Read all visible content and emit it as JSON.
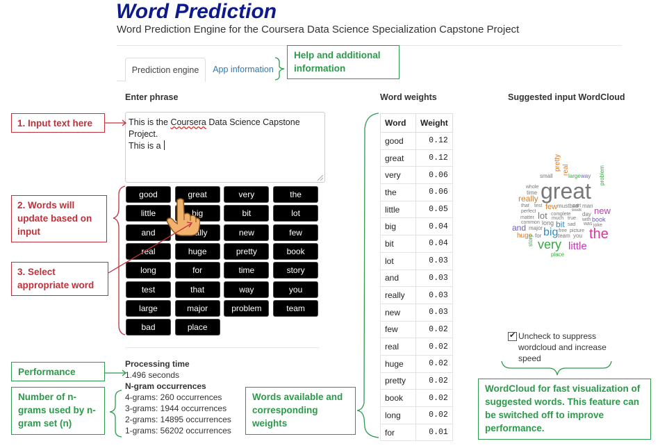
{
  "header": {
    "title": "Word Prediction",
    "subtitle": "Word Prediction Engine for the Coursera Data Science Specialization Capstone Project"
  },
  "tabs": [
    {
      "label": "Prediction engine",
      "active": true
    },
    {
      "label": "App information",
      "active": false
    }
  ],
  "input": {
    "heading": "Enter phrase",
    "value_part1": "This is the ",
    "value_misspelled": "Coursera",
    "value_part2": " Data Science Capstone Project.\nThis is a "
  },
  "word_buttons": [
    "good",
    "great",
    "very",
    "the",
    "little",
    "big",
    "bit",
    "lot",
    "and",
    "really",
    "new",
    "few",
    "real",
    "huge",
    "pretty",
    "book",
    "long",
    "for",
    "time",
    "story",
    "test",
    "that",
    "way",
    "you",
    "large",
    "major",
    "problem",
    "team",
    "bad",
    "place"
  ],
  "stats": {
    "processing_heading": "Processing time",
    "processing_value": "1.496 seconds",
    "ngram_heading": "N-gram occurrences",
    "ngrams": [
      "4-grams: 260 occurrences",
      "3-grams: 1944 occurrences",
      "2-grams: 14895 occurrences",
      "1-grams: 56202 occurrences"
    ]
  },
  "weights": {
    "heading": "Word weights",
    "col_word": "Word",
    "col_weight": "Weight",
    "rows": [
      [
        "good",
        "0.12"
      ],
      [
        "great",
        "0.12"
      ],
      [
        "very",
        "0.06"
      ],
      [
        "the",
        "0.06"
      ],
      [
        "little",
        "0.05"
      ],
      [
        "big",
        "0.04"
      ],
      [
        "bit",
        "0.04"
      ],
      [
        "lot",
        "0.03"
      ],
      [
        "and",
        "0.03"
      ],
      [
        "really",
        "0.03"
      ],
      [
        "new",
        "0.03"
      ],
      [
        "few",
        "0.02"
      ],
      [
        "real",
        "0.02"
      ],
      [
        "huge",
        "0.02"
      ],
      [
        "pretty",
        "0.02"
      ],
      [
        "book",
        "0.02"
      ],
      [
        "long",
        "0.02"
      ],
      [
        "for",
        "0.01"
      ]
    ]
  },
  "wordcloud": {
    "heading": "Suggested input WordCloud",
    "words": [
      {
        "text": "great",
        "color": "#777777"
      },
      {
        "text": "the",
        "color": "#d6339b"
      },
      {
        "text": "very",
        "color": "#3aa544"
      },
      {
        "text": "little",
        "color": "#c23bb4"
      },
      {
        "text": "big",
        "color": "#2b8cbf"
      },
      {
        "text": "really",
        "color": "#e07b22"
      },
      {
        "text": "new",
        "color": "#c23bb4"
      },
      {
        "text": "and",
        "color": "#6a5db8"
      },
      {
        "text": "lot",
        "color": "#777777"
      },
      {
        "text": "bit",
        "color": "#2b8cbf"
      },
      {
        "text": "few",
        "color": "#e07b22"
      },
      {
        "text": "huge",
        "color": "#e07b22"
      },
      {
        "text": "pretty",
        "color": "#e07b22"
      },
      {
        "text": "real",
        "color": "#e07b22"
      },
      {
        "text": "book",
        "color": "#6a5db8"
      },
      {
        "text": "long",
        "color": "#777777"
      },
      {
        "text": "story",
        "color": "#3aa544"
      },
      {
        "text": "small",
        "color": "#777777"
      },
      {
        "text": "large",
        "color": "#3aa544"
      },
      {
        "text": "way",
        "color": "#6a5db8"
      },
      {
        "text": "whole",
        "color": "#777777"
      },
      {
        "text": "time",
        "color": "#777777"
      },
      {
        "text": "problem",
        "color": "#3aa544"
      },
      {
        "text": "mustbad",
        "color": "#777777"
      },
      {
        "text": "man",
        "color": "#777777"
      },
      {
        "text": "day",
        "color": "#777777"
      },
      {
        "text": "that",
        "color": "#777777"
      },
      {
        "text": "test",
        "color": "#777777"
      },
      {
        "text": "perfect",
        "color": "#777777"
      },
      {
        "text": "matter",
        "color": "#777777"
      },
      {
        "text": "common",
        "color": "#777777"
      },
      {
        "text": "major",
        "color": "#777777"
      },
      {
        "text": "for",
        "color": "#777777"
      },
      {
        "text": "team",
        "color": "#777777"
      },
      {
        "text": "you",
        "color": "#777777"
      },
      {
        "text": "place",
        "color": "#3aa544"
      },
      {
        "text": "joke",
        "color": "#777777"
      },
      {
        "text": "was",
        "color": "#777777"
      },
      {
        "text": "with",
        "color": "#777777"
      },
      {
        "text": "much",
        "color": "#777777"
      },
      {
        "text": "true",
        "color": "#777777"
      },
      {
        "text": "sad",
        "color": "#777777"
      },
      {
        "text": "free",
        "color": "#777777"
      },
      {
        "text": "picture",
        "color": "#777777"
      },
      {
        "text": "complete",
        "color": "#777777"
      },
      {
        "text": "week",
        "color": "#777777"
      },
      {
        "text": "part",
        "color": "#777777"
      }
    ]
  },
  "checkbox": {
    "checked": true,
    "label": "Uncheck to suppress wordcloud and increase speed"
  },
  "callouts": {
    "help": "Help and additional information",
    "input": "1. Input text here",
    "words_update": "2. Words will update based on input",
    "select": "3. Select appropriate word",
    "performance": "Performance",
    "ngrams": "Number of n-grams used by n-gram set (n)",
    "words_available": "Words available and corresponding weights",
    "wordcloud": "WordCloud for fast visualization of suggested words. This feature can be switched off to improve performance."
  },
  "colors": {
    "title": "#0d1a8c",
    "callout_red": "#c0303a",
    "callout_green": "#2b9a4a",
    "link": "#2a7ab8"
  }
}
